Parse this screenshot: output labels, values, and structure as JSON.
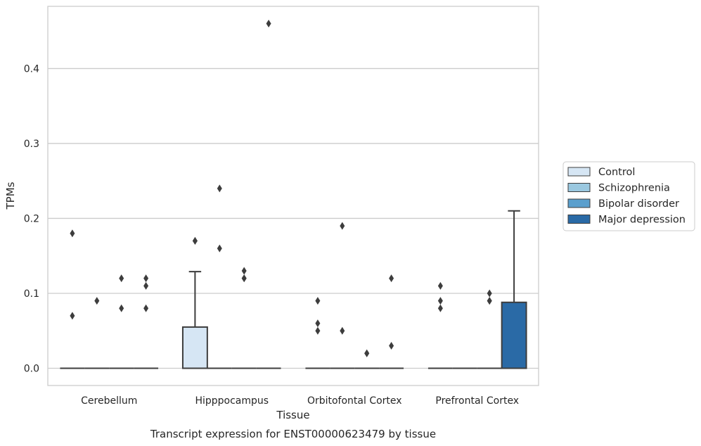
{
  "chart_data": {
    "type": "box",
    "title": "",
    "caption": "Transcript expression for ENST00000623479 by tissue",
    "xlabel": "Tissue",
    "ylabel": "TPMs",
    "ylim": [
      -0.023,
      0.483
    ],
    "yticks": [
      "0.0",
      "0.1",
      "0.2",
      "0.3",
      "0.4"
    ],
    "ytick_values": [
      0.0,
      0.1,
      0.2,
      0.3,
      0.4
    ],
    "grid": true,
    "legend_position": "right",
    "categories": [
      "Cerebellum",
      "Hipppocampus",
      "Orbitofontal Cortex",
      "Prefrontal Cortex"
    ],
    "series": [
      {
        "name": "Control",
        "color": "#d6e6f4",
        "boxes": [
          {
            "q1": 0,
            "median": 0,
            "q3": 0,
            "whisker_low": 0,
            "whisker_high": 0,
            "outliers": [
              0.18,
              0.07
            ]
          },
          {
            "q1": 0,
            "median": 0,
            "q3": 0.055,
            "whisker_low": 0,
            "whisker_high": 0.129,
            "outliers": [
              0.17,
              0.17
            ]
          },
          {
            "q1": 0,
            "median": 0,
            "q3": 0,
            "whisker_low": 0,
            "whisker_high": 0,
            "outliers": [
              0.09,
              0.06,
              0.05
            ]
          },
          {
            "q1": 0,
            "median": 0,
            "q3": 0,
            "whisker_low": 0,
            "whisker_high": 0,
            "outliers": [
              0.11,
              0.09,
              0.08
            ]
          }
        ]
      },
      {
        "name": "Schizophrenia",
        "color": "#9ac8e0",
        "boxes": [
          {
            "q1": 0,
            "median": 0,
            "q3": 0,
            "whisker_low": 0,
            "whisker_high": 0,
            "outliers": [
              0.09
            ]
          },
          {
            "q1": 0,
            "median": 0,
            "q3": 0,
            "whisker_low": 0,
            "whisker_high": 0,
            "outliers": [
              0.24,
              0.16
            ]
          },
          {
            "q1": 0,
            "median": 0,
            "q3": 0,
            "whisker_low": 0,
            "whisker_high": 0,
            "outliers": [
              0.19,
              0.05
            ]
          },
          {
            "q1": 0,
            "median": 0,
            "q3": 0,
            "whisker_low": 0,
            "whisker_high": 0,
            "outliers": []
          }
        ]
      },
      {
        "name": "Bipolar disorder",
        "color": "#5a9fcd",
        "boxes": [
          {
            "q1": 0,
            "median": 0,
            "q3": 0,
            "whisker_low": 0,
            "whisker_high": 0,
            "outliers": [
              0.12,
              0.08
            ]
          },
          {
            "q1": 0,
            "median": 0,
            "q3": 0,
            "whisker_low": 0,
            "whisker_high": 0,
            "outliers": [
              0.13,
              0.12,
              0.12
            ]
          },
          {
            "q1": 0,
            "median": 0,
            "q3": 0,
            "whisker_low": 0,
            "whisker_high": 0,
            "outliers": [
              0.02,
              0.02
            ]
          },
          {
            "q1": 0,
            "median": 0,
            "q3": 0,
            "whisker_low": 0,
            "whisker_high": 0,
            "outliers": [
              0.1,
              0.09,
              0.09
            ]
          }
        ]
      },
      {
        "name": "Major depression",
        "color": "#2a6aa6",
        "boxes": [
          {
            "q1": 0,
            "median": 0,
            "q3": 0,
            "whisker_low": 0,
            "whisker_high": 0,
            "outliers": [
              0.12,
              0.11,
              0.08
            ]
          },
          {
            "q1": 0,
            "median": 0,
            "q3": 0,
            "whisker_low": 0,
            "whisker_high": 0,
            "outliers": [
              0.46
            ]
          },
          {
            "q1": 0,
            "median": 0,
            "q3": 0,
            "whisker_low": 0,
            "whisker_high": 0,
            "outliers": [
              0.12,
              0.03
            ]
          },
          {
            "q1": 0,
            "median": 0,
            "q3": 0.088,
            "whisker_low": 0,
            "whisker_high": 0.21,
            "outliers": []
          }
        ]
      }
    ]
  }
}
